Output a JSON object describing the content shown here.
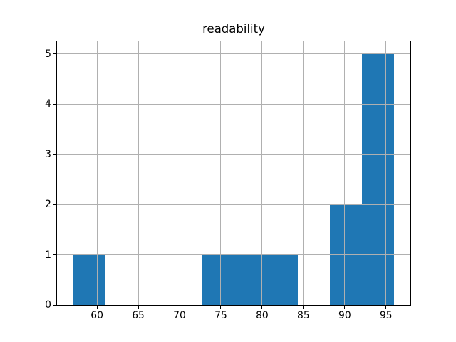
{
  "figure": {
    "background": "#ffffff"
  },
  "chart_data": {
    "type": "bar",
    "subtype": "histogram",
    "title": "readability",
    "bin_edges": [
      57.1,
      60.99,
      64.88,
      68.77,
      72.66,
      76.55,
      80.44,
      84.33,
      88.22,
      92.11,
      96.0
    ],
    "counts": [
      1,
      0,
      0,
      0,
      1,
      1,
      1,
      0,
      2,
      5
    ],
    "xticks": [
      60,
      65,
      70,
      75,
      80,
      85,
      90,
      95
    ],
    "yticks": [
      0,
      1,
      2,
      3,
      4,
      5
    ],
    "xlim": [
      55.16,
      97.95
    ],
    "ylim": [
      0,
      5.25
    ],
    "grid": true,
    "grid_color": "#b0b0b0",
    "bar_color": "#1f77b4",
    "spine_color": "#000000",
    "legend_position": "none"
  }
}
